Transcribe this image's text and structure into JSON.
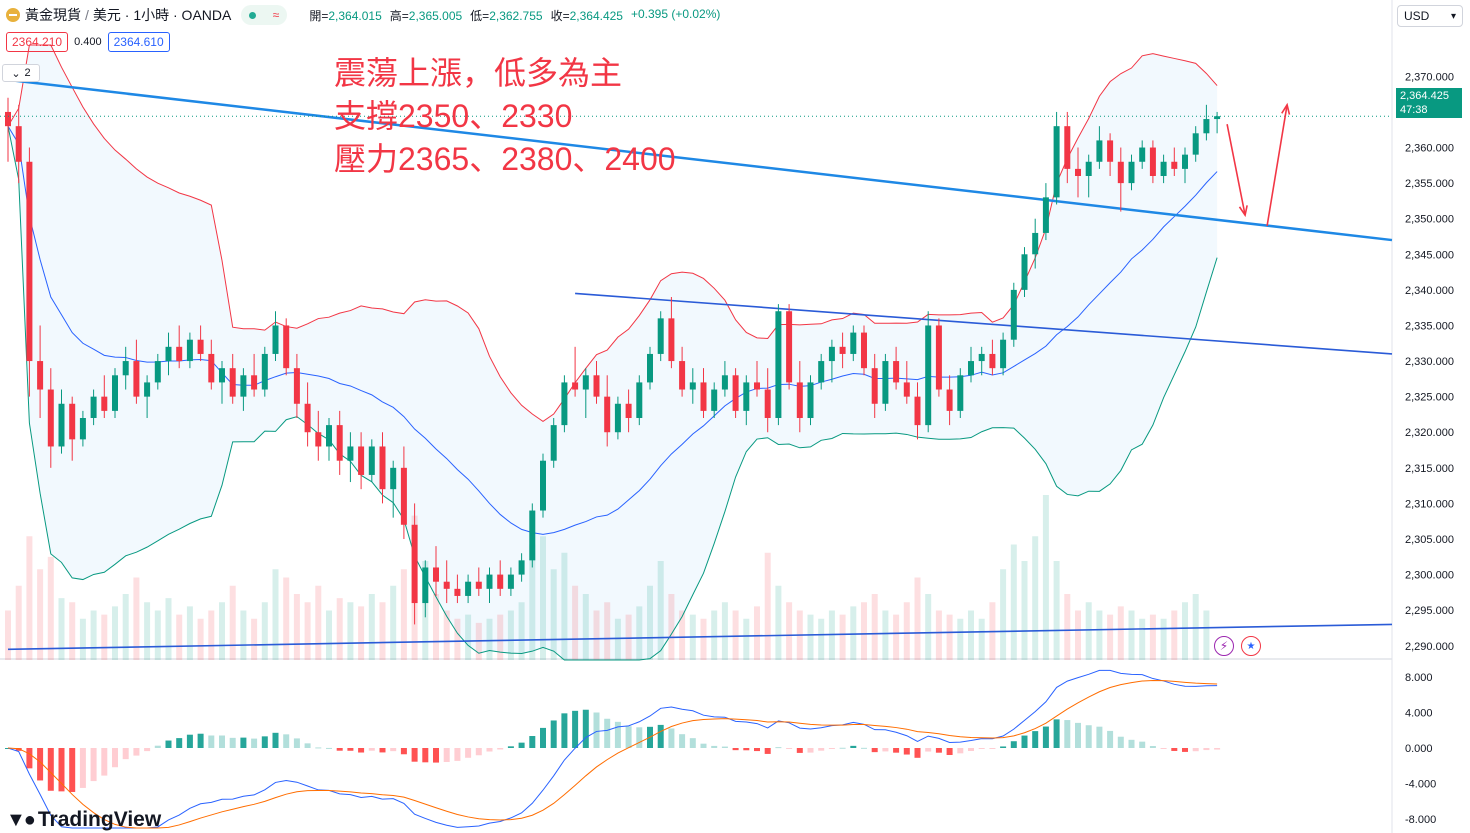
{
  "header": {
    "symbol": "黃金現貨",
    "separator": "/",
    "quote": "美元 · 1小時 · OANDA",
    "status_icon": "≈",
    "ohlc": [
      {
        "label": "開=",
        "value": "2,364.015"
      },
      {
        "label": "高=",
        "value": "2,365.005"
      },
      {
        "label": "低=",
        "value": "2,362.755"
      },
      {
        "label": "收=",
        "value": "2,364.425"
      }
    ],
    "change": "+0.395 (+0.02%)"
  },
  "price_boxes": {
    "bid": "2364.210",
    "spread": "0.400",
    "ask": "2364.610"
  },
  "indicator_toggle": {
    "icon": "chevron-down-icon",
    "count": "2"
  },
  "currency_select": {
    "value": "USD",
    "icon": "chevron-down-icon"
  },
  "annotation": {
    "lines": [
      "震蕩上漲，低多為主",
      "支撐2350、2330",
      "壓力2365、2380、2400"
    ],
    "color": "#f23645"
  },
  "current_price": {
    "price": "2,364.425",
    "countdown": "47:38",
    "color": "#089981"
  },
  "price_axis": [
    "2,370.000",
    "2,360.000",
    "2,355.000",
    "2,350.000",
    "2,345.000",
    "2,340.000",
    "2,335.000",
    "2,330.000",
    "2,325.000",
    "2,320.000",
    "2,315.000",
    "2,310.000",
    "2,305.000",
    "2,300.000",
    "2,295.000",
    "2,290.000"
  ],
  "macd_axis": [
    "8.000",
    "4.000",
    "0.000",
    "-4.000",
    "-8.000"
  ],
  "colors": {
    "up": "#089981",
    "down": "#f23645",
    "band_upper": "#f23645",
    "band_mid": "#2962ff",
    "band_lower": "#089981",
    "trendline": "#1e88e5",
    "macd": "#2962ff",
    "signal": "#ff6d00"
  },
  "logo": {
    "text": "TradingView",
    "icon": "tradingview-logo"
  },
  "event_icons": {
    "bolt": "⚡",
    "flag": "us-flag-icon"
  },
  "chart_data": {
    "type": "candlestick",
    "symbol": "XAUUSD",
    "timeframe": "1小時",
    "ylim": [
      2288,
      2373
    ],
    "candles": [
      [
        2365.0,
        2367.0,
        2358.0,
        2363.0
      ],
      [
        2363.0,
        2366.0,
        2355.0,
        2358.0
      ],
      [
        2358.0,
        2360.0,
        2325.0,
        2330.0
      ],
      [
        2330.0,
        2335.0,
        2322.0,
        2326.0
      ],
      [
        2326.0,
        2329.0,
        2315.0,
        2318.0
      ],
      [
        2318.0,
        2326.0,
        2317.0,
        2324.0
      ],
      [
        2324.0,
        2325.0,
        2316.0,
        2319.0
      ],
      [
        2319.0,
        2323.0,
        2318.0,
        2322.0
      ],
      [
        2322.0,
        2326.0,
        2321.0,
        2325.0
      ],
      [
        2325.0,
        2328.0,
        2322.0,
        2323.0
      ],
      [
        2323.0,
        2329.0,
        2322.0,
        2328.0
      ],
      [
        2328.0,
        2332.0,
        2326.0,
        2330.0
      ],
      [
        2330.0,
        2333.0,
        2324.0,
        2325.0
      ],
      [
        2325.0,
        2328.0,
        2322.0,
        2327.0
      ],
      [
        2327.0,
        2331.0,
        2326.0,
        2330.0
      ],
      [
        2330.0,
        2334.0,
        2328.0,
        2332.0
      ],
      [
        2332.0,
        2335.0,
        2329.0,
        2330.0
      ],
      [
        2330.0,
        2334.0,
        2329.0,
        2333.0
      ],
      [
        2333.0,
        2335.0,
        2330.0,
        2331.0
      ],
      [
        2331.0,
        2333.0,
        2326.0,
        2327.0
      ],
      [
        2327.0,
        2330.0,
        2324.0,
        2329.0
      ],
      [
        2329.0,
        2331.0,
        2324.0,
        2325.0
      ],
      [
        2325.0,
        2329.0,
        2323.0,
        2328.0
      ],
      [
        2328.0,
        2331.0,
        2325.0,
        2326.0
      ],
      [
        2326.0,
        2332.0,
        2325.0,
        2331.0
      ],
      [
        2331.0,
        2337.0,
        2330.0,
        2335.0
      ],
      [
        2335.0,
        2336.0,
        2328.0,
        2329.0
      ],
      [
        2329.0,
        2331.0,
        2322.0,
        2324.0
      ],
      [
        2324.0,
        2327.0,
        2318.0,
        2320.0
      ],
      [
        2320.0,
        2323.0,
        2316.0,
        2318.0
      ],
      [
        2318.0,
        2322.0,
        2316.0,
        2321.0
      ],
      [
        2321.0,
        2323.0,
        2314.0,
        2316.0
      ],
      [
        2316.0,
        2320.0,
        2313.0,
        2318.0
      ],
      [
        2318.0,
        2320.0,
        2312.0,
        2314.0
      ],
      [
        2314.0,
        2319.0,
        2313.0,
        2318.0
      ],
      [
        2318.0,
        2320.0,
        2310.0,
        2312.0
      ],
      [
        2312.0,
        2316.0,
        2308.0,
        2315.0
      ],
      [
        2315.0,
        2318.0,
        2305.0,
        2307.0
      ],
      [
        2307.0,
        2310.0,
        2293.0,
        2296.0
      ],
      [
        2296.0,
        2302.0,
        2294.0,
        2301.0
      ],
      [
        2301.0,
        2304.0,
        2297.0,
        2299.0
      ],
      [
        2299.0,
        2302.0,
        2296.0,
        2298.0
      ],
      [
        2298.0,
        2300.0,
        2296.0,
        2297.0
      ],
      [
        2297.0,
        2300.0,
        2296.0,
        2299.0
      ],
      [
        2299.0,
        2301.0,
        2297.0,
        2298.0
      ],
      [
        2298.0,
        2301.0,
        2296.0,
        2300.0
      ],
      [
        2300.0,
        2302.0,
        2297.0,
        2298.0
      ],
      [
        2298.0,
        2301.0,
        2297.0,
        2300.0
      ],
      [
        2300.0,
        2303.0,
        2299.0,
        2302.0
      ],
      [
        2302.0,
        2310.0,
        2301.0,
        2309.0
      ],
      [
        2309.0,
        2317.0,
        2308.0,
        2316.0
      ],
      [
        2316.0,
        2322.0,
        2315.0,
        2321.0
      ],
      [
        2321.0,
        2328.0,
        2320.0,
        2327.0
      ],
      [
        2327.0,
        2332.0,
        2325.0,
        2326.0
      ],
      [
        2326.0,
        2329.0,
        2322.0,
        2328.0
      ],
      [
        2328.0,
        2330.0,
        2324.0,
        2325.0
      ],
      [
        2325.0,
        2328.0,
        2318.0,
        2320.0
      ],
      [
        2320.0,
        2325.0,
        2319.0,
        2324.0
      ],
      [
        2324.0,
        2326.0,
        2320.0,
        2322.0
      ],
      [
        2322.0,
        2328.0,
        2321.0,
        2327.0
      ],
      [
        2327.0,
        2332.0,
        2326.0,
        2331.0
      ],
      [
        2331.0,
        2337.0,
        2330.0,
        2336.0
      ],
      [
        2336.0,
        2339.0,
        2329.0,
        2330.0
      ],
      [
        2330.0,
        2332.0,
        2325.0,
        2326.0
      ],
      [
        2326.0,
        2329.0,
        2324.0,
        2327.0
      ],
      [
        2327.0,
        2329.0,
        2322.0,
        2323.0
      ],
      [
        2323.0,
        2327.0,
        2322.0,
        2326.0
      ],
      [
        2326.0,
        2330.0,
        2325.0,
        2328.0
      ],
      [
        2328.0,
        2329.0,
        2322.0,
        2323.0
      ],
      [
        2323.0,
        2328.0,
        2321.0,
        2327.0
      ],
      [
        2327.0,
        2330.0,
        2325.0,
        2326.0
      ],
      [
        2326.0,
        2329.0,
        2320.0,
        2322.0
      ],
      [
        2322.0,
        2338.0,
        2321.0,
        2337.0
      ],
      [
        2337.0,
        2338.0,
        2326.0,
        2327.0
      ],
      [
        2327.0,
        2330.0,
        2320.0,
        2322.0
      ],
      [
        2322.0,
        2328.0,
        2321.0,
        2327.0
      ],
      [
        2327.0,
        2331.0,
        2326.0,
        2330.0
      ],
      [
        2330.0,
        2333.0,
        2327.0,
        2332.0
      ],
      [
        2332.0,
        2334.0,
        2329.0,
        2331.0
      ],
      [
        2331.0,
        2335.0,
        2330.0,
        2334.0
      ],
      [
        2334.0,
        2335.0,
        2328.0,
        2329.0
      ],
      [
        2329.0,
        2331.0,
        2322.0,
        2324.0
      ],
      [
        2324.0,
        2331.0,
        2323.0,
        2330.0
      ],
      [
        2330.0,
        2332.0,
        2326.0,
        2327.0
      ],
      [
        2327.0,
        2330.0,
        2324.0,
        2325.0
      ],
      [
        2325.0,
        2327.0,
        2319.0,
        2321.0
      ],
      [
        2321.0,
        2337.0,
        2320.0,
        2335.0
      ],
      [
        2335.0,
        2336.0,
        2325.0,
        2326.0
      ],
      [
        2326.0,
        2328.0,
        2321.0,
        2323.0
      ],
      [
        2323.0,
        2329.0,
        2322.0,
        2328.0
      ],
      [
        2328.0,
        2332.0,
        2327.0,
        2330.0
      ],
      [
        2330.0,
        2332.0,
        2328.0,
        2331.0
      ],
      [
        2331.0,
        2333.0,
        2328.0,
        2329.0
      ],
      [
        2329.0,
        2334.0,
        2328.0,
        2333.0
      ],
      [
        2333.0,
        2341.0,
        2332.0,
        2340.0
      ],
      [
        2340.0,
        2346.0,
        2339.0,
        2345.0
      ],
      [
        2345.0,
        2350.0,
        2343.0,
        2348.0
      ],
      [
        2348.0,
        2355.0,
        2347.0,
        2353.0
      ],
      [
        2353.0,
        2365.0,
        2352.0,
        2363.0
      ],
      [
        2363.0,
        2365.0,
        2355.0,
        2357.0
      ],
      [
        2357.0,
        2360.0,
        2353.0,
        2356.0
      ],
      [
        2356.0,
        2359.0,
        2353.0,
        2358.0
      ],
      [
        2358.0,
        2363.0,
        2357.0,
        2361.0
      ],
      [
        2361.0,
        2362.0,
        2356.0,
        2358.0
      ],
      [
        2358.0,
        2360.0,
        2351.0,
        2355.0
      ],
      [
        2355.0,
        2359.0,
        2354.0,
        2358.0
      ],
      [
        2358.0,
        2361.0,
        2357.0,
        2360.0
      ],
      [
        2360.0,
        2361.0,
        2355.0,
        2356.0
      ],
      [
        2356.0,
        2359.0,
        2355.0,
        2358.0
      ],
      [
        2358.0,
        2360.0,
        2356.0,
        2357.0
      ],
      [
        2357.0,
        2360.0,
        2355.0,
        2359.0
      ],
      [
        2359.0,
        2363.0,
        2358.0,
        2362.0
      ],
      [
        2362.0,
        2366.0,
        2361.0,
        2364.0
      ],
      [
        2364.0,
        2365.0,
        2362.0,
        2364.4
      ]
    ],
    "volume": [
      12,
      18,
      30,
      22,
      25,
      15,
      14,
      10,
      12,
      11,
      13,
      16,
      20,
      14,
      12,
      15,
      11,
      13,
      10,
      12,
      14,
      18,
      12,
      10,
      14,
      22,
      20,
      16,
      14,
      18,
      12,
      15,
      14,
      13,
      16,
      14,
      18,
      22,
      35,
      24,
      16,
      12,
      10,
      11,
      9,
      10,
      11,
      12,
      14,
      28,
      30,
      22,
      26,
      18,
      16,
      12,
      14,
      10,
      11,
      13,
      18,
      24,
      16,
      12,
      11,
      10,
      12,
      14,
      12,
      10,
      13,
      26,
      18,
      14,
      12,
      11,
      10,
      12,
      11,
      13,
      14,
      16,
      12,
      11,
      14,
      20,
      16,
      12,
      11,
      10,
      12,
      10,
      14,
      22,
      28,
      24,
      30,
      40,
      24,
      16,
      12,
      14,
      12,
      11,
      13,
      12,
      10,
      11,
      10,
      12,
      14,
      16,
      12
    ],
    "trendlines": [
      {
        "from": [
          0,
          2369.5
        ],
        "to": [
          "end",
          2347.0
        ]
      },
      {
        "from": [
          53,
          2339.5
        ],
        "to": [
          "end",
          2331.0
        ]
      },
      {
        "from": [
          0,
          2289.5
        ],
        "to": [
          "end",
          2293.0
        ]
      }
    ],
    "arrows": [
      {
        "direction": "down"
      },
      {
        "direction": "up"
      }
    ],
    "macd_ylim": [
      -9,
      9
    ]
  }
}
